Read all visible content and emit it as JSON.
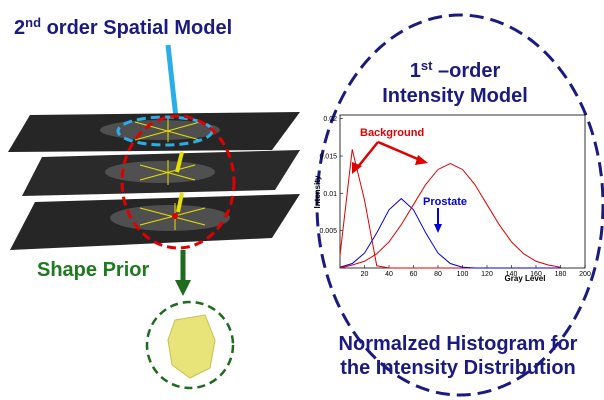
{
  "title_spatial": {
    "number": "2",
    "sup": "nd",
    "rest": " order Spatial Model"
  },
  "shape_prior": "Shape Prior",
  "intensity_title": {
    "number": "1",
    "sup": "st",
    "rest": " –order",
    "line2": "Intensity Model"
  },
  "caption": [
    "Normalzed Histogram for",
    "the Intensity Distribution"
  ],
  "plot": {
    "type": "line",
    "xlabel": "Gray Level",
    "ylabel": "Intensity",
    "annotations": {
      "background": "Background",
      "prostate": "Prostate"
    },
    "xlim": [
      0,
      200
    ],
    "ylim": [
      0,
      0.0205
    ],
    "xticks": [
      20,
      40,
      60,
      80,
      100,
      120,
      140,
      160,
      180,
      200
    ],
    "yticks": [
      0.005,
      0.01,
      0.015,
      0.02
    ],
    "x": [
      0,
      10,
      20,
      30,
      40,
      50,
      60,
      70,
      80,
      90,
      100,
      110,
      120,
      130,
      140,
      150,
      160,
      170,
      180
    ],
    "series": [
      {
        "color": "#e00000",
        "values": [
          0.0017,
          0.0159,
          0.0091,
          0.0003,
          0,
          0,
          0,
          0,
          0,
          0,
          0,
          0,
          0,
          0,
          0,
          0,
          0,
          0,
          0
        ]
      },
      {
        "color": "#0000e0",
        "values": [
          0.0001,
          0.0006,
          0.002,
          0.0047,
          0.0078,
          0.0093,
          0.0078,
          0.0047,
          0.002,
          0.0006,
          0.0001,
          0,
          0,
          0,
          0,
          0,
          0,
          0,
          0
        ]
      },
      {
        "color": "#e00000",
        "values": [
          0,
          0.0004,
          0.0009,
          0.0019,
          0.0035,
          0.0058,
          0.0085,
          0.0112,
          0.0132,
          0.014,
          0.0132,
          0.0112,
          0.0085,
          0.0058,
          0.0035,
          0.0019,
          0.0009,
          0.0004,
          0.0001
        ]
      }
    ]
  }
}
